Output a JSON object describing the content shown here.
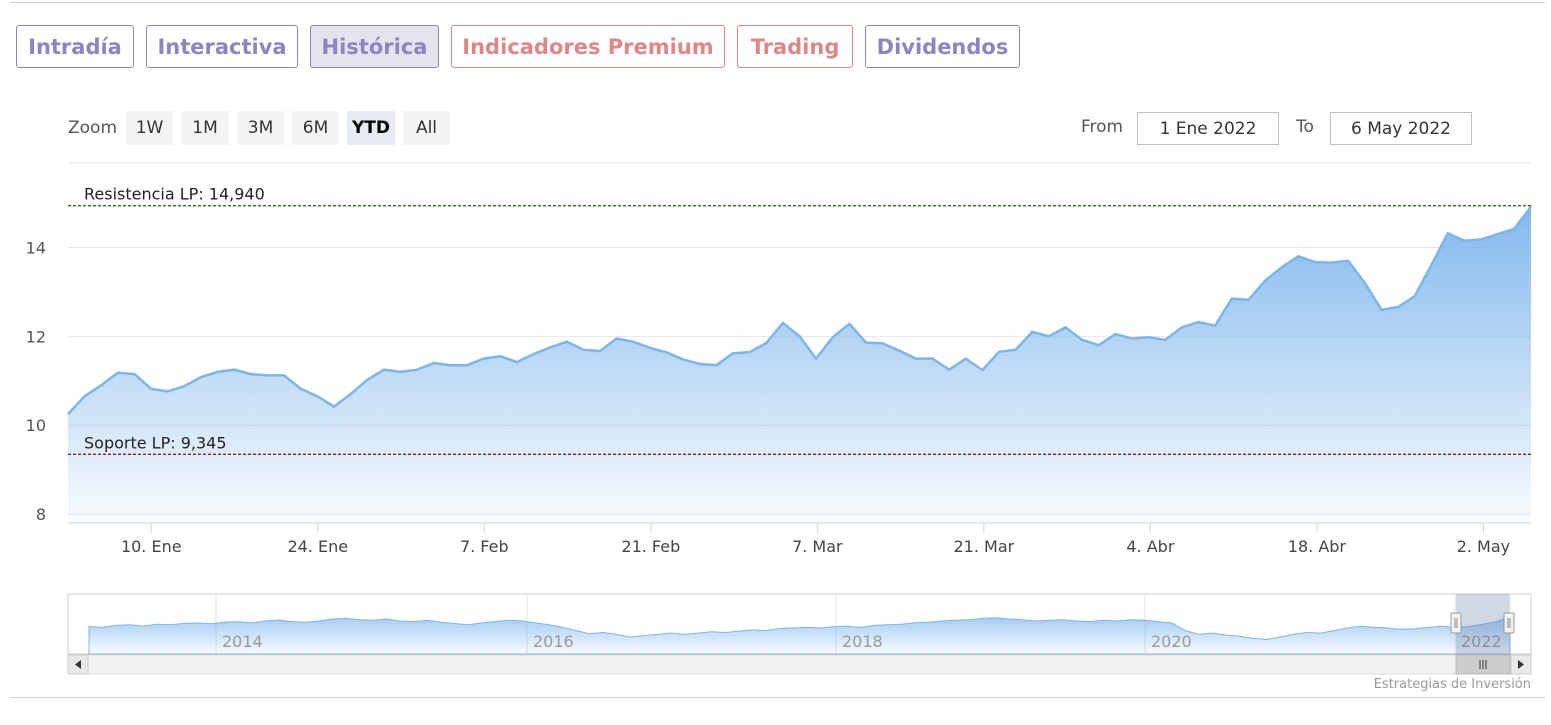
{
  "tabs": [
    {
      "label": "Intradía",
      "style": "purple",
      "active": false
    },
    {
      "label": "Interactiva",
      "style": "purple",
      "active": false
    },
    {
      "label": "Histórica",
      "style": "purple",
      "active": true
    },
    {
      "label": "Indicadores Premium",
      "style": "red",
      "active": false
    },
    {
      "label": "Trading",
      "style": "red",
      "active": false
    },
    {
      "label": "Dividendos",
      "style": "purple",
      "active": false
    }
  ],
  "range_selector": {
    "zoom_label": "Zoom",
    "buttons": [
      "1W",
      "1M",
      "3M",
      "6M",
      "YTD",
      "All"
    ],
    "selected": "YTD",
    "from_label": "From",
    "from_value": "1 Ene 2022",
    "to_label": "To",
    "to_value": "6 May 2022"
  },
  "chart_data": {
    "type": "area",
    "x_ticks": [
      "10. Ene",
      "24. Ene",
      "7. Feb",
      "21. Feb",
      "7. Mar",
      "21. Mar",
      "4. Abr",
      "18. Abr",
      "2. May"
    ],
    "y_ticks": [
      8,
      10,
      12,
      14
    ],
    "ylim": [
      7.8,
      15.9
    ],
    "x_range": [
      "3 Ene 2022",
      "6 May 2022"
    ],
    "values": [
      10.25,
      10.65,
      10.9,
      11.18,
      11.15,
      10.82,
      10.76,
      10.88,
      11.08,
      11.2,
      11.25,
      11.15,
      11.12,
      11.12,
      10.82,
      10.65,
      10.42,
      10.7,
      11.02,
      11.25,
      11.2,
      11.25,
      11.4,
      11.35,
      11.35,
      11.5,
      11.55,
      11.42,
      11.6,
      11.75,
      11.88,
      11.7,
      11.67,
      11.95,
      11.88,
      11.74,
      11.64,
      11.48,
      11.38,
      11.35,
      11.62,
      11.64,
      11.85,
      12.3,
      12.0,
      11.5,
      11.98,
      12.28,
      11.86,
      11.84,
      11.68,
      11.5,
      11.5,
      11.25,
      11.5,
      11.24,
      11.65,
      11.7,
      12.1,
      12.0,
      12.2,
      11.92,
      11.8,
      12.05,
      11.95,
      11.98,
      11.92,
      12.2,
      12.32,
      12.24,
      12.85,
      12.82,
      13.25,
      13.55,
      13.8,
      13.67,
      13.66,
      13.7,
      13.2,
      12.6,
      12.66,
      12.9,
      13.6,
      14.32,
      14.15,
      14.18,
      14.3,
      14.42,
      14.92
    ],
    "resistance": {
      "label": "Resistencia LP: 14,940",
      "value": 14.94,
      "color": "#1a7a1a"
    },
    "support": {
      "label": "Soporte LP: 9,345",
      "value": 9.345,
      "color": "#8b1a3a"
    },
    "line_color": "#7cb5ec",
    "navigator": {
      "year_labels": [
        "2014",
        "2016",
        "2018",
        "2020",
        "2022"
      ],
      "values": [
        0.55,
        0.52,
        0.58,
        0.6,
        0.56,
        0.62,
        0.6,
        0.64,
        0.66,
        0.63,
        0.68,
        0.7,
        0.66,
        0.72,
        0.75,
        0.7,
        0.68,
        0.72,
        0.78,
        0.8,
        0.76,
        0.74,
        0.78,
        0.72,
        0.7,
        0.74,
        0.68,
        0.64,
        0.6,
        0.66,
        0.7,
        0.74,
        0.72,
        0.66,
        0.6,
        0.52,
        0.42,
        0.32,
        0.36,
        0.3,
        0.22,
        0.26,
        0.3,
        0.34,
        0.3,
        0.34,
        0.38,
        0.36,
        0.4,
        0.44,
        0.42,
        0.48,
        0.5,
        0.52,
        0.5,
        0.54,
        0.56,
        0.52,
        0.58,
        0.6,
        0.62,
        0.66,
        0.68,
        0.72,
        0.74,
        0.76,
        0.8,
        0.82,
        0.78,
        0.76,
        0.72,
        0.74,
        0.76,
        0.72,
        0.7,
        0.74,
        0.72,
        0.76,
        0.74,
        0.7,
        0.66,
        0.42,
        0.3,
        0.34,
        0.28,
        0.24,
        0.18,
        0.14,
        0.22,
        0.3,
        0.36,
        0.34,
        0.42,
        0.5,
        0.56,
        0.52,
        0.5,
        0.46,
        0.48,
        0.52,
        0.56,
        0.5,
        0.55,
        0.62,
        0.7,
        0.86
      ]
    }
  },
  "credits": "Estrategias de Inversión"
}
